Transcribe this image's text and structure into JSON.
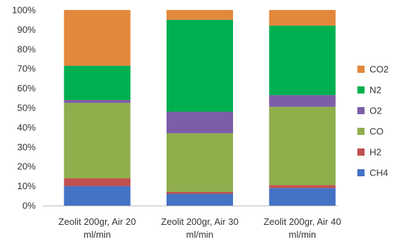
{
  "chart_data": {
    "type": "bar",
    "stacked": true,
    "categories": [
      [
        "Zeolit 200gr, Air 20",
        "ml/min"
      ],
      [
        "Zeolit 200gr, Air 30",
        "ml/min"
      ],
      [
        "Zeolit 200gr, Air 40",
        "ml/min"
      ]
    ],
    "series": [
      {
        "name": "CH4",
        "color": "#4472C4",
        "values": [
          10,
          6,
          9
        ]
      },
      {
        "name": "H2",
        "color": "#C0504D",
        "values": [
          4,
          1,
          1.5
        ]
      },
      {
        "name": "CO",
        "color": "#8FAE4C",
        "values": [
          38.5,
          30,
          40
        ]
      },
      {
        "name": "O2",
        "color": "#7B5EA7",
        "values": [
          1.5,
          11,
          6
        ]
      },
      {
        "name": "N2",
        "color": "#00B050",
        "values": [
          17.5,
          47,
          35.5
        ]
      },
      {
        "name": "CO2",
        "color": "#E3873C",
        "values": [
          28.5,
          5,
          8
        ]
      }
    ],
    "yticks": [
      "0%",
      "10%",
      "20%",
      "30%",
      "40%",
      "50%",
      "60%",
      "70%",
      "80%",
      "90%",
      "100%"
    ],
    "ylim": [
      0,
      100
    ],
    "legend_position": "right",
    "grid": false
  }
}
